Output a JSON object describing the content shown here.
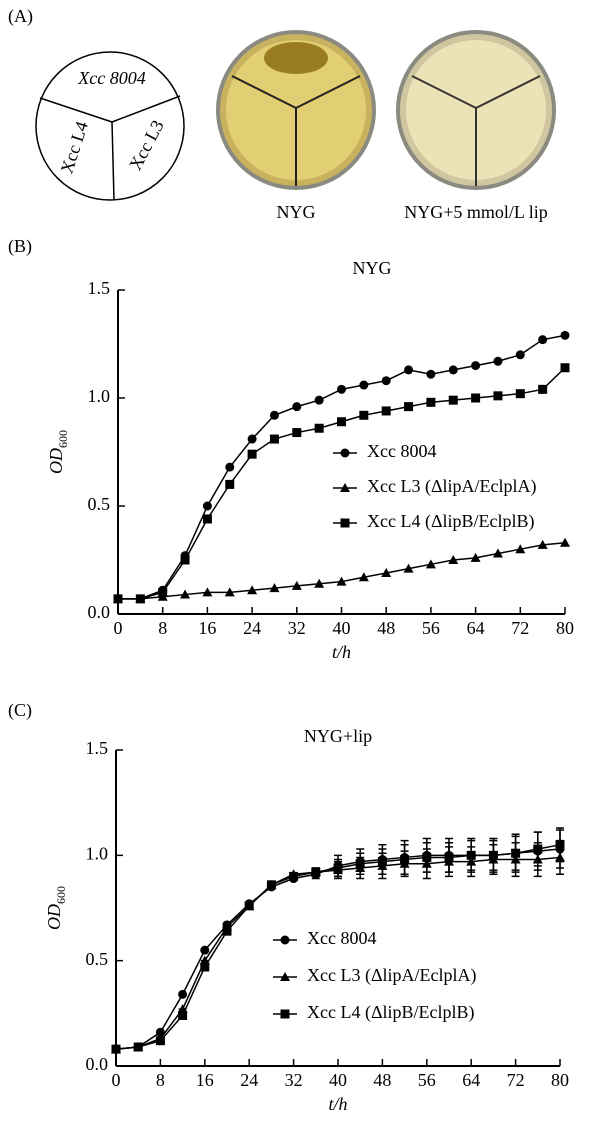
{
  "panel_a": {
    "panel_label": "(A)",
    "sectors": [
      "Xcc 8004",
      "Xcc L4",
      "Xcc L3"
    ],
    "plates": [
      "NYG",
      "NYG+5 mmol/L lip"
    ]
  },
  "chart_data": [
    {
      "type": "line",
      "panel_label": "(B)",
      "title": "NYG",
      "x_label": "t/h",
      "y_label": {
        "text": "OD",
        "subscript": "600"
      },
      "x": [
        0,
        4,
        8,
        12,
        16,
        20,
        24,
        28,
        32,
        36,
        40,
        44,
        48,
        52,
        56,
        60,
        64,
        68,
        72,
        76,
        80
      ],
      "xlim": [
        0,
        80
      ],
      "xticks": [
        0,
        8,
        16,
        24,
        32,
        40,
        48,
        56,
        64,
        72,
        80
      ],
      "ylim": [
        0,
        1.5
      ],
      "yticks": [
        {
          "value": 0,
          "label": "0.0"
        },
        {
          "value": 0.5,
          "label": "0.5"
        },
        {
          "value": 1,
          "label": "1.0"
        },
        {
          "value": 1.5,
          "label": "1.5"
        }
      ],
      "series": [
        {
          "name": "Xcc 8004",
          "color": "#000000",
          "marker": "circle",
          "values": [
            0.07,
            0.07,
            0.11,
            0.27,
            0.5,
            0.68,
            0.81,
            0.92,
            0.96,
            0.99,
            1.04,
            1.06,
            1.08,
            1.13,
            1.11,
            1.13,
            1.15,
            1.17,
            1.2,
            1.27,
            1.29
          ]
        },
        {
          "name": "Xcc L3 (ΔlipA/EclplA)",
          "color": "#000000",
          "marker": "triangle",
          "values": [
            0.07,
            0.07,
            0.08,
            0.09,
            0.1,
            0.1,
            0.11,
            0.12,
            0.13,
            0.14,
            0.15,
            0.17,
            0.19,
            0.21,
            0.23,
            0.25,
            0.26,
            0.28,
            0.3,
            0.32,
            0.33
          ]
        },
        {
          "name": "Xcc L4 (ΔlipB/EclplB)",
          "color": "#000000",
          "marker": "square",
          "values": [
            0.07,
            0.07,
            0.1,
            0.25,
            0.44,
            0.6,
            0.74,
            0.81,
            0.84,
            0.86,
            0.89,
            0.92,
            0.94,
            0.96,
            0.98,
            0.99,
            1.0,
            1.01,
            1.02,
            1.04,
            1.14
          ]
        }
      ]
    },
    {
      "type": "line",
      "panel_label": "(C)",
      "title": "NYG+lip",
      "x_label": "t/h",
      "y_label": {
        "text": "OD",
        "subscript": "600"
      },
      "x": [
        0,
        4,
        8,
        12,
        16,
        20,
        24,
        28,
        32,
        36,
        40,
        44,
        48,
        52,
        56,
        60,
        64,
        68,
        72,
        76,
        80
      ],
      "xlim": [
        0,
        80
      ],
      "xticks": [
        0,
        8,
        16,
        24,
        32,
        40,
        48,
        56,
        64,
        72,
        80
      ],
      "ylim": [
        0,
        1.5
      ],
      "yticks": [
        {
          "value": 0,
          "label": "0.0"
        },
        {
          "value": 0.5,
          "label": "0.5"
        },
        {
          "value": 1,
          "label": "1.0"
        },
        {
          "value": 1.5,
          "label": "1.5"
        }
      ],
      "series": [
        {
          "name": "Xcc 8004",
          "color": "#000000",
          "marker": "circle",
          "values": [
            0.08,
            0.09,
            0.16,
            0.34,
            0.55,
            0.67,
            0.77,
            0.85,
            0.89,
            0.91,
            0.95,
            0.97,
            0.98,
            0.99,
            1.0,
            1.0,
            1.0,
            1.0,
            1.01,
            1.02,
            1.03
          ],
          "errors": [
            0,
            0,
            0,
            0,
            0,
            0,
            0,
            0,
            0,
            0.02,
            0.05,
            0.06,
            0.07,
            0.08,
            0.08,
            0.08,
            0.08,
            0.08,
            0.09,
            0.09,
            0.09
          ]
        },
        {
          "name": "Xcc L3 (ΔlipA/EclplA)",
          "color": "#000000",
          "marker": "triangle",
          "values": [
            0.08,
            0.09,
            0.13,
            0.27,
            0.5,
            0.66,
            0.76,
            0.86,
            0.91,
            0.92,
            0.93,
            0.94,
            0.95,
            0.96,
            0.96,
            0.97,
            0.97,
            0.98,
            0.98,
            0.98,
            0.99
          ],
          "errors": [
            0,
            0,
            0,
            0,
            0,
            0,
            0,
            0,
            0,
            0.02,
            0.04,
            0.05,
            0.06,
            0.06,
            0.07,
            0.07,
            0.07,
            0.07,
            0.08,
            0.08,
            0.08
          ]
        },
        {
          "name": "Xcc L4 (ΔlipB/EclplB)",
          "color": "#000000",
          "marker": "square",
          "values": [
            0.08,
            0.09,
            0.12,
            0.24,
            0.47,
            0.64,
            0.76,
            0.86,
            0.9,
            0.92,
            0.94,
            0.96,
            0.97,
            0.98,
            0.99,
            0.99,
            1.0,
            1.0,
            1.01,
            1.03,
            1.05
          ],
          "errors": [
            0,
            0,
            0,
            0,
            0,
            0,
            0,
            0,
            0,
            0.02,
            0.04,
            0.05,
            0.06,
            0.07,
            0.07,
            0.07,
            0.07,
            0.07,
            0.08,
            0.08,
            0.08
          ]
        }
      ]
    }
  ]
}
